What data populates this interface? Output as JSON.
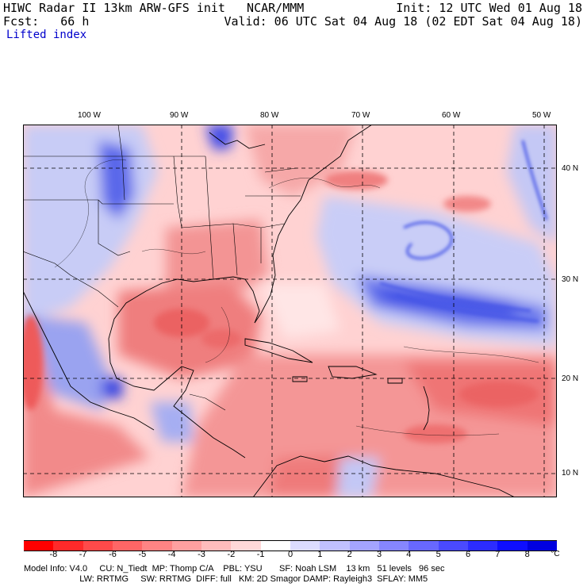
{
  "header": {
    "title_left": "HIWC Radar II 13km ARW-GFS init   NCAR/MMM",
    "forecast": "Fcst:   66 h",
    "field": "Lifted index",
    "init": "Init: 12 UTC Wed 01 Aug 18",
    "valid": "Valid: 06 UTC Sat 04 Aug 18 (02 EDT Sat 04 Aug 18)"
  },
  "map": {
    "lon_labels": [
      "100 W",
      "90 W",
      "80 W",
      "70 W",
      "60 W",
      "50 W"
    ],
    "lat_labels": [
      "40 N",
      "30 N",
      "20 N",
      "10 N"
    ],
    "colors": {
      "land_warm": "#f08080",
      "ocean_cool": "#9fa8f0",
      "deep_cool": "#2a3ce0",
      "neutral": "#ffffff"
    }
  },
  "colorbar": {
    "ticks": [
      "-8",
      "-7",
      "-6",
      "-5",
      "-4",
      "-3",
      "-2",
      "-1",
      "0",
      "1",
      "2",
      "3",
      "4",
      "5",
      "6",
      "7",
      "8"
    ],
    "unit": "°C",
    "colors": [
      "#ff0000",
      "#ff2a2a",
      "#ff4a4a",
      "#ff6666",
      "#ff8484",
      "#ffa0a0",
      "#ffbcbc",
      "#ffd8d8",
      "#ffffff",
      "#dcdcff",
      "#c0c0ff",
      "#a4a4ff",
      "#8686ff",
      "#6868ff",
      "#4a4aff",
      "#2c2cff",
      "#0e0eff",
      "#0000e0"
    ]
  },
  "footer": {
    "line1": "Model Info: V4.0     CU: N_Tiedt  MP: Thomp C/A    PBL: YSU       SF: Noah LSM    13 km   51 levels   96 sec",
    "line2": "                       LW: RRTMG     SW: RRTMG  DIFF: full   KM: 2D Smagor DAMP: Rayleigh3  SFLAY: MM5"
  }
}
